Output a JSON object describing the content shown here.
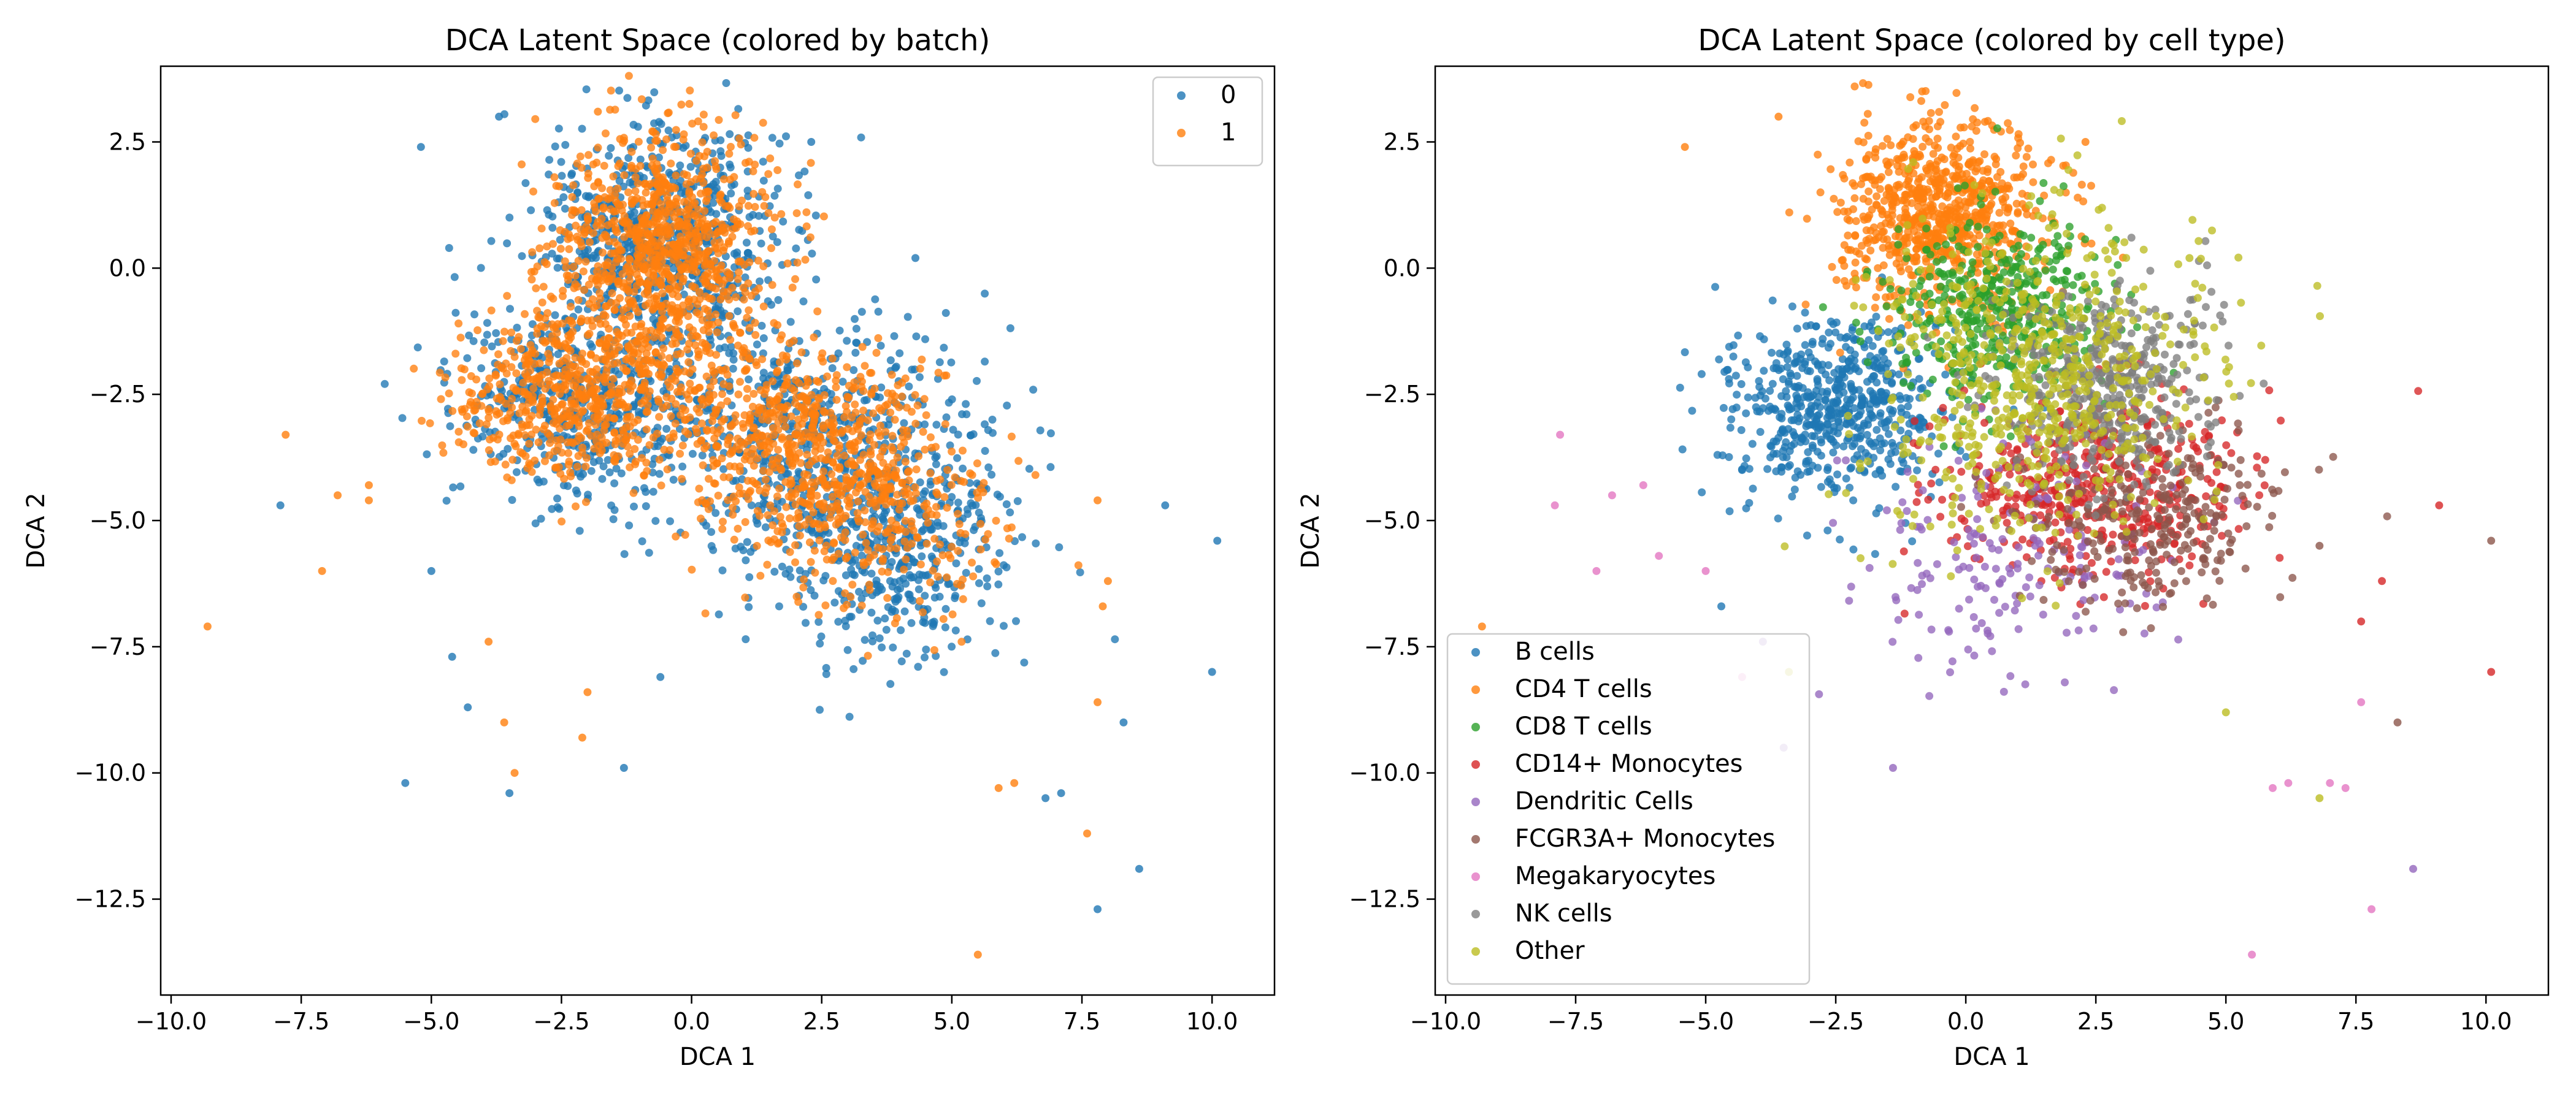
{
  "figure": {
    "background": "#ffffff"
  },
  "chart_data": [
    {
      "type": "scatter",
      "title": "DCA Latent Space (colored by batch)",
      "xlabel": "DCA 1",
      "ylabel": "DCA 2",
      "xlim": [
        -10.2,
        11.2
      ],
      "ylim": [
        -14.4,
        4.0
      ],
      "xticks": [
        -10.0,
        -7.5,
        -5.0,
        -2.5,
        0.0,
        2.5,
        5.0,
        7.5,
        10.0
      ],
      "xtick_labels": [
        "−10.0",
        "−7.5",
        "−5.0",
        "−2.5",
        "0.0",
        "2.5",
        "5.0",
        "7.5",
        "10.0"
      ],
      "yticks": [
        2.5,
        0.0,
        -2.5,
        -5.0,
        -7.5,
        -10.0,
        -12.5
      ],
      "ytick_labels": [
        "2.5",
        "0.0",
        "−2.5",
        "−5.0",
        "−7.5",
        "−10.0",
        "−12.5"
      ],
      "grid": false,
      "legend": "top-right",
      "series": [
        {
          "name": "0",
          "color": "#1f77b4",
          "clusters": [
            {
              "center": [
                -0.5,
                0.5
              ],
              "spread": [
                1.2,
                1.1
              ],
              "count": 700
            },
            {
              "center": [
                -2.0,
                -2.6
              ],
              "spread": [
                1.3,
                0.9
              ],
              "count": 500
            },
            {
              "center": [
                2.5,
                -3.5
              ],
              "spread": [
                1.5,
                1.2
              ],
              "count": 500
            },
            {
              "center": [
                4.0,
                -5.5
              ],
              "spread": [
                1.2,
                1.2
              ],
              "count": 400
            }
          ],
          "points": [
            {
              "x": -5.2,
              "y": 2.4
            },
            {
              "x": -3.7,
              "y": 3.0
            },
            {
              "x": 2.3,
              "y": 2.5
            },
            {
              "x": 4.3,
              "y": 0.2
            },
            {
              "x": -7.9,
              "y": -4.7
            },
            {
              "x": -5.5,
              "y": -10.2
            },
            {
              "x": -4.6,
              "y": -7.7
            },
            {
              "x": -3.5,
              "y": -10.4
            },
            {
              "x": -1.3,
              "y": -9.9
            },
            {
              "x": 7.8,
              "y": -12.7
            },
            {
              "x": 8.6,
              "y": -11.9
            },
            {
              "x": 10.1,
              "y": -5.4
            },
            {
              "x": 10.0,
              "y": -8.0
            },
            {
              "x": 9.1,
              "y": -4.7
            },
            {
              "x": 8.3,
              "y": -9.0
            },
            {
              "x": 6.8,
              "y": -10.5
            },
            {
              "x": 7.1,
              "y": -10.4
            },
            {
              "x": -5.0,
              "y": -6.0
            },
            {
              "x": -4.3,
              "y": -8.7
            },
            {
              "x": -0.6,
              "y": -8.1
            }
          ]
        },
        {
          "name": "1",
          "color": "#ff7f0e",
          "clusters": [
            {
              "center": [
                -0.5,
                0.3
              ],
              "spread": [
                1.0,
                1.2
              ],
              "count": 900
            },
            {
              "center": [
                -2.2,
                -2.5
              ],
              "spread": [
                1.2,
                0.8
              ],
              "count": 550
            },
            {
              "center": [
                1.8,
                -3.3
              ],
              "spread": [
                1.3,
                1.0
              ],
              "count": 550
            },
            {
              "center": [
                3.5,
                -4.8
              ],
              "spread": [
                1.2,
                1.0
              ],
              "count": 300
            }
          ],
          "points": [
            {
              "x": -9.3,
              "y": -7.1
            },
            {
              "x": -7.8,
              "y": -3.3
            },
            {
              "x": -7.1,
              "y": -6.0
            },
            {
              "x": -6.8,
              "y": -4.5
            },
            {
              "x": -6.2,
              "y": -4.3
            },
            {
              "x": 5.5,
              "y": -13.6
            },
            {
              "x": 7.6,
              "y": -11.2
            },
            {
              "x": 7.8,
              "y": -8.6
            },
            {
              "x": 6.2,
              "y": -10.2
            },
            {
              "x": 5.9,
              "y": -10.3
            },
            {
              "x": 8.0,
              "y": -6.2
            },
            {
              "x": 7.9,
              "y": -6.7
            },
            {
              "x": 7.8,
              "y": -4.6
            },
            {
              "x": -3.6,
              "y": -9.0
            },
            {
              "x": -2.1,
              "y": -9.3
            },
            {
              "x": -2.0,
              "y": -8.4
            },
            {
              "x": -3.9,
              "y": -7.4
            },
            {
              "x": -3.4,
              "y": -10.0
            },
            {
              "x": -1.8,
              "y": 3.1
            },
            {
              "x": -6.2,
              "y": -4.6
            }
          ]
        }
      ]
    },
    {
      "type": "scatter",
      "title": "DCA Latent Space (colored by cell type)",
      "xlabel": "DCA 1",
      "ylabel": "DCA 2",
      "xlim": [
        -10.2,
        11.2
      ],
      "ylim": [
        -14.4,
        4.0
      ],
      "xticks": [
        -10.0,
        -7.5,
        -5.0,
        -2.5,
        0.0,
        2.5,
        5.0,
        7.5,
        10.0
      ],
      "xtick_labels": [
        "−10.0",
        "−7.5",
        "−5.0",
        "−2.5",
        "0.0",
        "2.5",
        "5.0",
        "7.5",
        "10.0"
      ],
      "yticks": [
        2.5,
        0.0,
        -2.5,
        -5.0,
        -7.5,
        -10.0,
        -12.5
      ],
      "ytick_labels": [
        "2.5",
        "0.0",
        "−2.5",
        "−5.0",
        "−7.5",
        "−10.0",
        "−12.5"
      ],
      "grid": false,
      "legend": "lower-left",
      "series": [
        {
          "name": "B cells",
          "color": "#1f77b4",
          "clusters": [
            {
              "center": [
                -2.5,
                -2.8
              ],
              "spread": [
                1.1,
                0.9
              ],
              "count": 600
            }
          ],
          "points": [
            {
              "x": -4.3,
              "y": -4.0
            },
            {
              "x": -4.7,
              "y": -6.7
            }
          ]
        },
        {
          "name": "CD4 T cells",
          "color": "#ff7f0e",
          "clusters": [
            {
              "center": [
                -0.5,
                1.1
              ],
              "spread": [
                1.0,
                0.9
              ],
              "count": 800
            }
          ],
          "points": [
            {
              "x": -9.3,
              "y": -7.1
            },
            {
              "x": -5.4,
              "y": 2.4
            },
            {
              "x": -3.6,
              "y": 3.0
            },
            {
              "x": 2.3,
              "y": 2.5
            }
          ]
        },
        {
          "name": "CD8 T cells",
          "color": "#2ca02c",
          "clusters": [
            {
              "center": [
                0.7,
                -0.9
              ],
              "spread": [
                1.0,
                0.9
              ],
              "count": 450
            }
          ],
          "points": []
        },
        {
          "name": "CD14+ Monocytes",
          "color": "#d62728",
          "clusters": [
            {
              "center": [
                2.5,
                -4.3
              ],
              "spread": [
                1.5,
                0.9
              ],
              "count": 500
            }
          ],
          "points": [
            {
              "x": 10.1,
              "y": -8.0
            },
            {
              "x": 9.1,
              "y": -4.7
            },
            {
              "x": 8.0,
              "y": -6.2
            },
            {
              "x": 7.6,
              "y": -7.0
            }
          ]
        },
        {
          "name": "Dendritic Cells",
          "color": "#9467bd",
          "clusters": [
            {
              "center": [
                0.7,
                -5.8
              ],
              "spread": [
                1.6,
                1.2
              ],
              "count": 180
            }
          ],
          "points": [
            {
              "x": 8.6,
              "y": -11.9
            },
            {
              "x": -1.4,
              "y": -9.9
            },
            {
              "x": -3.5,
              "y": -9.5
            },
            {
              "x": -3.9,
              "y": -7.4
            }
          ]
        },
        {
          "name": "FCGR3A+ Monocytes",
          "color": "#8c564b",
          "clusters": [
            {
              "center": [
                3.6,
                -5.0
              ],
              "spread": [
                1.2,
                0.9
              ],
              "count": 280
            }
          ],
          "points": [
            {
              "x": 10.1,
              "y": -5.4
            },
            {
              "x": 8.3,
              "y": -9.0
            },
            {
              "x": 6.8,
              "y": -5.5
            }
          ]
        },
        {
          "name": "Megakaryocytes",
          "color": "#e377c2",
          "clusters": [],
          "points": [
            {
              "x": -7.8,
              "y": -3.3
            },
            {
              "x": -7.9,
              "y": -4.7
            },
            {
              "x": -6.8,
              "y": -4.5
            },
            {
              "x": -6.2,
              "y": -4.3
            },
            {
              "x": -5.9,
              "y": -5.7
            },
            {
              "x": -7.1,
              "y": -6.0
            },
            {
              "x": -5.0,
              "y": -6.0
            },
            {
              "x": 5.5,
              "y": -13.6
            },
            {
              "x": 7.8,
              "y": -12.7
            },
            {
              "x": 7.6,
              "y": -8.6
            },
            {
              "x": 7.0,
              "y": -10.2
            },
            {
              "x": 6.2,
              "y": -10.2
            },
            {
              "x": 5.9,
              "y": -10.3
            },
            {
              "x": 7.3,
              "y": -10.3
            },
            {
              "x": -4.3,
              "y": -8.1
            }
          ]
        },
        {
          "name": "NK cells",
          "color": "#7f7f7f",
          "clusters": [
            {
              "center": [
                2.8,
                -2.3
              ],
              "spread": [
                1.0,
                1.0
              ],
              "count": 450
            }
          ],
          "points": [
            {
              "x": 4.4,
              "y": -1.1
            }
          ]
        },
        {
          "name": "Other",
          "color": "#bcbd22",
          "clusters": [
            {
              "center": [
                1.3,
                -2.2
              ],
              "spread": [
                1.6,
                1.6
              ],
              "count": 650
            }
          ],
          "points": [
            {
              "x": 6.8,
              "y": -10.5
            },
            {
              "x": 4.3,
              "y": 0.2
            },
            {
              "x": -3.4,
              "y": -8.0
            },
            {
              "x": 5.0,
              "y": -8.8
            }
          ]
        }
      ]
    }
  ]
}
